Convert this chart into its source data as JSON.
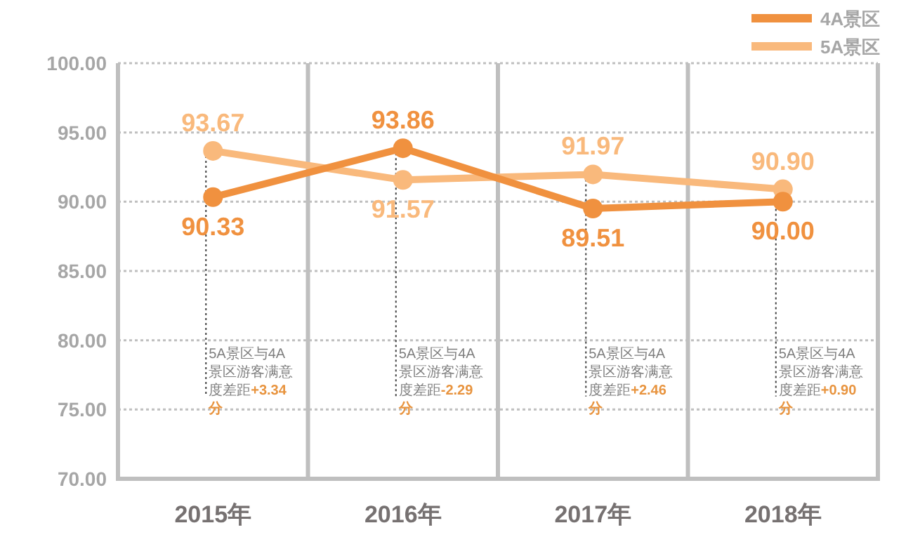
{
  "chart_data": {
    "type": "line",
    "categories": [
      "2015年",
      "2016年",
      "2017年",
      "2018年"
    ],
    "series": [
      {
        "name": "4A景区",
        "color": "#f0913f",
        "values": [
          90.33,
          93.86,
          89.51,
          90.0
        ],
        "value_labels": [
          "90.33",
          "93.86",
          "89.51",
          "90.00"
        ]
      },
      {
        "name": "5A景区",
        "color": "#f9b97c",
        "values": [
          93.67,
          91.57,
          91.97,
          90.9
        ],
        "value_labels": [
          "93.67",
          "91.57",
          "91.97",
          "90.90"
        ]
      }
    ],
    "ylim": [
      70,
      100
    ],
    "yticks": [
      {
        "value": 70,
        "label": "70.00"
      },
      {
        "value": 75,
        "label": "75.00"
      },
      {
        "value": 80,
        "label": "80.00"
      },
      {
        "value": 85,
        "label": "85.00"
      },
      {
        "value": 90,
        "label": "90.00"
      },
      {
        "value": 95,
        "label": "95.00"
      },
      {
        "value": 100,
        "label": "100.00"
      }
    ],
    "grid": "y",
    "legend": "top right",
    "marker": "circle",
    "line_style": "solid",
    "annotations": [
      "5A景区与4A景区游客满意度差距**+3.34分**",
      "5A景区与4A景区游客满意度差距**-2.29分**",
      "5A景区与4A景区游客满意度差距**+2.46分**",
      "5A景区与4A景区游客满意度差距**+0.90分**"
    ]
  }
}
